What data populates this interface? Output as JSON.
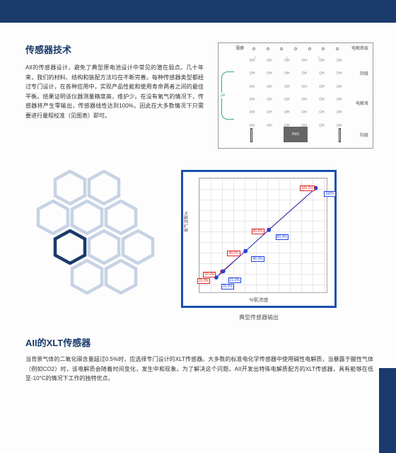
{
  "colors": {
    "brand": "#1a3a6b",
    "chart_border": "#1a4fae",
    "hex_light": "#c7d3e4",
    "hex_dark": "#1a3a6b",
    "grid": "#d0d0d0",
    "line_red": "#d22222",
    "line_blue": "#2244dd"
  },
  "section1": {
    "title": "传感器技术",
    "paragraph": "AII的传感器设计，避免了典型原电池设计中常见的潜在弱点。几十年来，我们的材料、结构和装配方法均在不断完善。每种传感器类型都经过专门设计，在各种应用中，实现产品性能和使用寿命两者之间的最佳平衡。结果证明该仪器测量精度高，维护少。在没有氧气的情况下，传感器将产生零输出，传感器线性达到100%，因此在大多数情况下只需要进行量程校准（见图表）即可。"
  },
  "diagram": {
    "labels": {
      "top_left": "薄膜",
      "top_right": "电解质层",
      "right_mid1": "阴极",
      "right_mid2": "电解液",
      "right_bottom": "阳极"
    },
    "particle": "OH",
    "center_box": "PbO"
  },
  "honeycomb": {
    "type": "infographic",
    "hex_count": 10,
    "dark_index": 5,
    "positions": [
      [
        38,
        0
      ],
      [
        86,
        0
      ],
      [
        14,
        42
      ],
      [
        62,
        42
      ],
      [
        110,
        42
      ],
      [
        38,
        84
      ],
      [
        86,
        84
      ],
      [
        134,
        84
      ],
      [
        62,
        126
      ],
      [
        110,
        126
      ]
    ]
  },
  "chart": {
    "type": "line",
    "caption": "典型传感器输出",
    "y_label": "氧气读数%",
    "x_label": "%氧浓度",
    "xlim": [
      0,
      110
    ],
    "ylim": [
      0,
      110
    ],
    "grid_step_x": 10,
    "grid_step_y": 10,
    "background_color": "#ffffff",
    "series": [
      {
        "name": "series1",
        "color": "#d22222",
        "marker": "circle",
        "marker_size": 3,
        "points": [
          [
            15,
            15.2
          ],
          [
            20,
            20.9
          ],
          [
            40,
            40.2
          ],
          [
            60,
            60.6
          ],
          [
            100,
            100.2
          ]
        ],
        "labels": [
          "15.2%",
          "20.9%",
          "40.2%",
          "60.6%",
          "100.2%"
        ]
      },
      {
        "name": "series2",
        "color": "#2244dd",
        "marker": "circle",
        "marker_size": 3,
        "points": [
          [
            15,
            15.2
          ],
          [
            21,
            21.0
          ],
          [
            40,
            40.3
          ],
          [
            60,
            60.3
          ],
          [
            100,
            100.0
          ]
        ],
        "labels": [
          "15.2%",
          "21.0%",
          "40.3%",
          "60.3%",
          "100%"
        ]
      }
    ]
  },
  "section3": {
    "title": "AII的XLT传感器",
    "paragraph": "当背景气体的二氧化碳含量超过0.5%时，应选择专门设计的XLT传感器。大多数的标准电化学传感器中使用碱性电解质，当暴露于酸性气体（例如CO2）时，该电解质会随着时间变化，发生中和现象。为了解决这个问题，AII开发出特殊电解质配方的XLT传感器，具有能够在低至-10°C的情况下工作的独特优点。"
  }
}
